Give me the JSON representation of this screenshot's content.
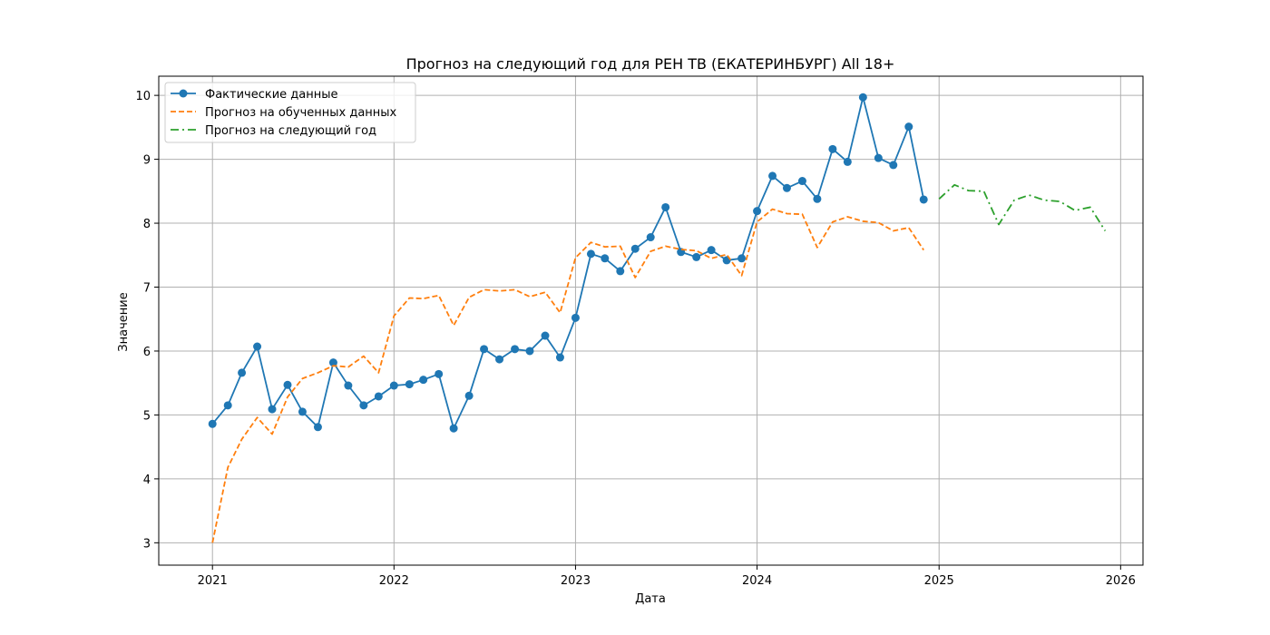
{
  "chart_data": {
    "type": "line",
    "title": "Прогноз на следующий год для РЕН ТВ (ЕКАТЕРИНБУРГ) All 18+",
    "xlabel": "Дата",
    "ylabel": "Значение",
    "xlim": [
      "2020-09-15",
      "2026-02-15"
    ],
    "ylim": [
      2.65,
      10.3
    ],
    "x_ticks": [
      "2021",
      "2022",
      "2023",
      "2024",
      "2025",
      "2026"
    ],
    "y_ticks": [
      "3",
      "4",
      "5",
      "6",
      "7",
      "8",
      "9",
      "10"
    ],
    "grid": true,
    "legend_position": "upper-left",
    "series": [
      {
        "name": "Фактические данные",
        "color": "#1f77b4",
        "style": "solid-marker",
        "x": [
          "2021-01",
          "2021-02",
          "2021-03",
          "2021-04",
          "2021-05",
          "2021-06",
          "2021-07",
          "2021-08",
          "2021-09",
          "2021-10",
          "2021-11",
          "2021-12",
          "2022-01",
          "2022-02",
          "2022-03",
          "2022-04",
          "2022-05",
          "2022-06",
          "2022-07",
          "2022-08",
          "2022-09",
          "2022-10",
          "2022-11",
          "2022-12",
          "2023-01",
          "2023-02",
          "2023-03",
          "2023-04",
          "2023-05",
          "2023-06",
          "2023-07",
          "2023-08",
          "2023-09",
          "2023-10",
          "2023-11",
          "2023-12",
          "2024-01",
          "2024-02",
          "2024-03",
          "2024-04",
          "2024-05",
          "2024-06",
          "2024-07",
          "2024-08",
          "2024-09",
          "2024-10",
          "2024-11",
          "2024-12"
        ],
        "values": [
          4.86,
          5.15,
          5.66,
          6.07,
          5.09,
          5.47,
          5.05,
          4.81,
          5.82,
          5.46,
          5.15,
          5.29,
          5.46,
          5.48,
          5.55,
          5.64,
          4.79,
          5.3,
          6.03,
          5.87,
          6.03,
          6.0,
          6.24,
          5.9,
          6.52,
          7.52,
          7.45,
          7.25,
          7.6,
          7.78,
          8.25,
          7.55,
          7.47,
          7.58,
          7.42,
          7.45,
          8.19,
          8.74,
          8.55,
          8.66,
          8.38,
          9.16,
          8.96,
          9.97,
          9.02,
          8.91,
          9.51,
          8.37
        ]
      },
      {
        "name": "Прогноз на обученных данных",
        "color": "#ff7f0e",
        "style": "dashed",
        "x": [
          "2021-01",
          "2021-02",
          "2021-03",
          "2021-04",
          "2021-05",
          "2021-06",
          "2021-07",
          "2021-08",
          "2021-09",
          "2021-10",
          "2021-11",
          "2021-12",
          "2022-01",
          "2022-02",
          "2022-03",
          "2022-04",
          "2022-05",
          "2022-06",
          "2022-07",
          "2022-08",
          "2022-09",
          "2022-10",
          "2022-11",
          "2022-12",
          "2023-01",
          "2023-02",
          "2023-03",
          "2023-04",
          "2023-05",
          "2023-06",
          "2023-07",
          "2023-08",
          "2023-09",
          "2023-10",
          "2023-11",
          "2023-12",
          "2024-01",
          "2024-02",
          "2024-03",
          "2024-04",
          "2024-05",
          "2024-06",
          "2024-07",
          "2024-08",
          "2024-09",
          "2024-10",
          "2024-11",
          "2024-12"
        ],
        "values": [
          3.0,
          4.18,
          4.62,
          4.96,
          4.7,
          5.28,
          5.57,
          5.66,
          5.77,
          5.75,
          5.92,
          5.66,
          6.55,
          6.83,
          6.82,
          6.87,
          6.4,
          6.84,
          6.96,
          6.94,
          6.96,
          6.85,
          6.92,
          6.6,
          7.46,
          7.7,
          7.63,
          7.64,
          7.15,
          7.56,
          7.64,
          7.59,
          7.57,
          7.45,
          7.51,
          7.18,
          8.02,
          8.22,
          8.15,
          8.14,
          7.62,
          8.02,
          8.1,
          8.03,
          8.01,
          7.88,
          7.93,
          7.58
        ]
      },
      {
        "name": "Прогноз на следующий год",
        "color": "#2ca02c",
        "style": "dash-dot",
        "x": [
          "2025-01",
          "2025-02",
          "2025-03",
          "2025-04",
          "2025-05",
          "2025-06",
          "2025-07",
          "2025-08",
          "2025-09",
          "2025-10",
          "2025-11",
          "2025-12"
        ],
        "values": [
          8.38,
          8.6,
          8.51,
          8.5,
          7.98,
          8.36,
          8.44,
          8.36,
          8.34,
          8.2,
          8.25,
          7.88
        ]
      }
    ]
  }
}
